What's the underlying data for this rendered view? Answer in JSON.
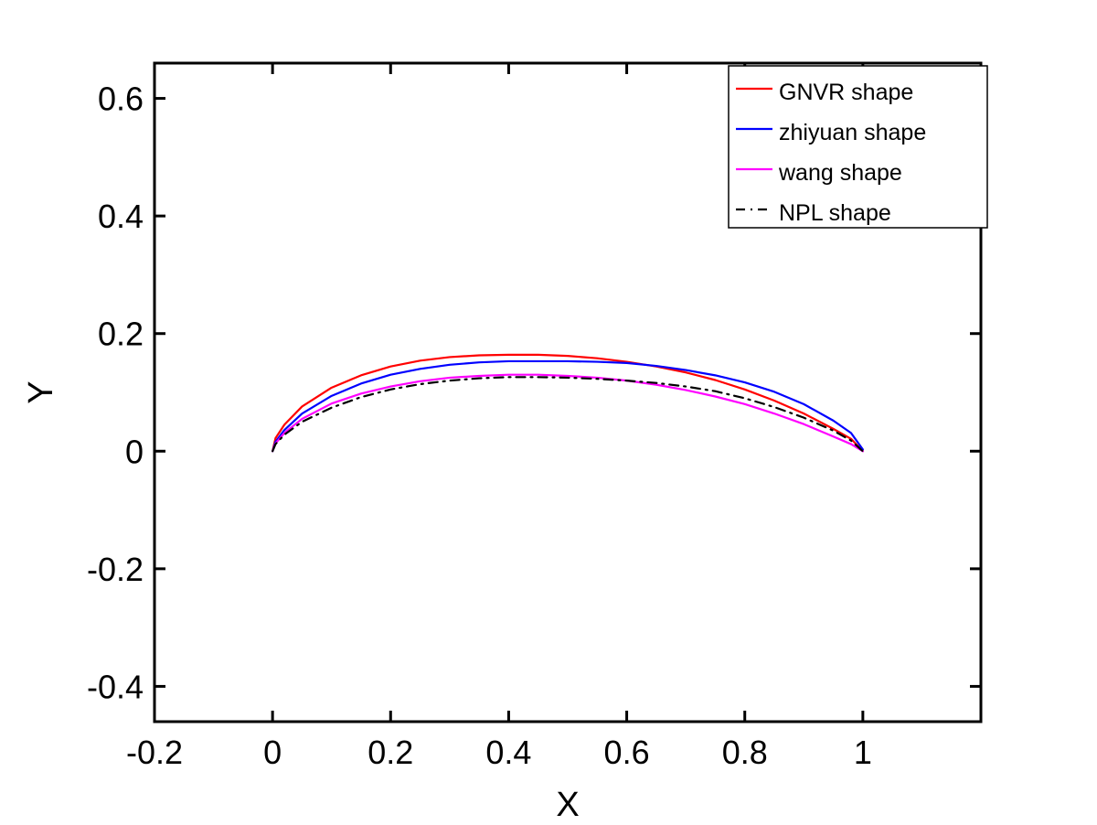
{
  "chart_data": {
    "type": "line",
    "title": "",
    "xlabel": "X",
    "ylabel": "Y",
    "xlim": [
      -0.2,
      1.2
    ],
    "ylim": [
      -0.46,
      0.66
    ],
    "xticks": [
      -0.2,
      0,
      0.2,
      0.4,
      0.6,
      0.8,
      1
    ],
    "xtick_labels": [
      "-0.2",
      "0",
      "0.2",
      "0.4",
      "0.6",
      "0.8",
      "1"
    ],
    "yticks": [
      -0.4,
      -0.2,
      0,
      0.2,
      0.4,
      0.6
    ],
    "ytick_labels": [
      "-0.4",
      "-0.2",
      "0",
      "0.2",
      "0.4",
      "0.6"
    ],
    "grid": false,
    "legend_position": "top-right",
    "series": [
      {
        "name": "GNVR shape",
        "color": "#ff0000",
        "style": "solid",
        "x": [
          0,
          0.005,
          0.02,
          0.05,
          0.1,
          0.15,
          0.2,
          0.25,
          0.3,
          0.35,
          0.4,
          0.45,
          0.5,
          0.55,
          0.6,
          0.65,
          0.7,
          0.75,
          0.8,
          0.85,
          0.9,
          0.95,
          0.98,
          1.0
        ],
        "y": [
          0,
          0.022,
          0.045,
          0.076,
          0.108,
          0.129,
          0.144,
          0.154,
          0.16,
          0.163,
          0.164,
          0.164,
          0.162,
          0.158,
          0.152,
          0.144,
          0.134,
          0.121,
          0.105,
          0.086,
          0.064,
          0.038,
          0.021,
          0.0
        ]
      },
      {
        "name": "zhiyuan shape",
        "color": "#0000ff",
        "style": "solid",
        "x": [
          0,
          0.005,
          0.02,
          0.05,
          0.1,
          0.15,
          0.2,
          0.25,
          0.3,
          0.35,
          0.4,
          0.45,
          0.5,
          0.55,
          0.6,
          0.65,
          0.7,
          0.75,
          0.8,
          0.85,
          0.9,
          0.95,
          0.98,
          1.0
        ],
        "y": [
          0,
          0.016,
          0.036,
          0.064,
          0.094,
          0.115,
          0.13,
          0.14,
          0.147,
          0.151,
          0.153,
          0.153,
          0.153,
          0.152,
          0.15,
          0.145,
          0.138,
          0.129,
          0.117,
          0.101,
          0.08,
          0.052,
          0.031,
          0.003
        ]
      },
      {
        "name": "wang shape",
        "color": "#ff00ff",
        "style": "solid",
        "x": [
          0,
          0.005,
          0.02,
          0.05,
          0.1,
          0.15,
          0.2,
          0.25,
          0.3,
          0.35,
          0.4,
          0.45,
          0.5,
          0.55,
          0.6,
          0.65,
          0.7,
          0.75,
          0.8,
          0.85,
          0.9,
          0.95,
          0.98,
          1.0
        ],
        "y": [
          0,
          0.013,
          0.031,
          0.055,
          0.081,
          0.098,
          0.11,
          0.119,
          0.125,
          0.128,
          0.13,
          0.13,
          0.128,
          0.125,
          0.12,
          0.113,
          0.104,
          0.093,
          0.08,
          0.064,
          0.046,
          0.025,
          0.012,
          0.0
        ]
      },
      {
        "name": "NPL shape",
        "color": "#000000",
        "style": "dashdot",
        "x": [
          0,
          0.005,
          0.02,
          0.05,
          0.1,
          0.15,
          0.2,
          0.25,
          0.3,
          0.35,
          0.4,
          0.45,
          0.5,
          0.55,
          0.6,
          0.65,
          0.7,
          0.75,
          0.8,
          0.85,
          0.9,
          0.95,
          0.98,
          1.0
        ],
        "y": [
          0,
          0.012,
          0.028,
          0.05,
          0.074,
          0.092,
          0.105,
          0.114,
          0.12,
          0.124,
          0.126,
          0.126,
          0.125,
          0.123,
          0.12,
          0.116,
          0.11,
          0.102,
          0.09,
          0.075,
          0.057,
          0.035,
          0.018,
          0.0
        ]
      }
    ]
  }
}
